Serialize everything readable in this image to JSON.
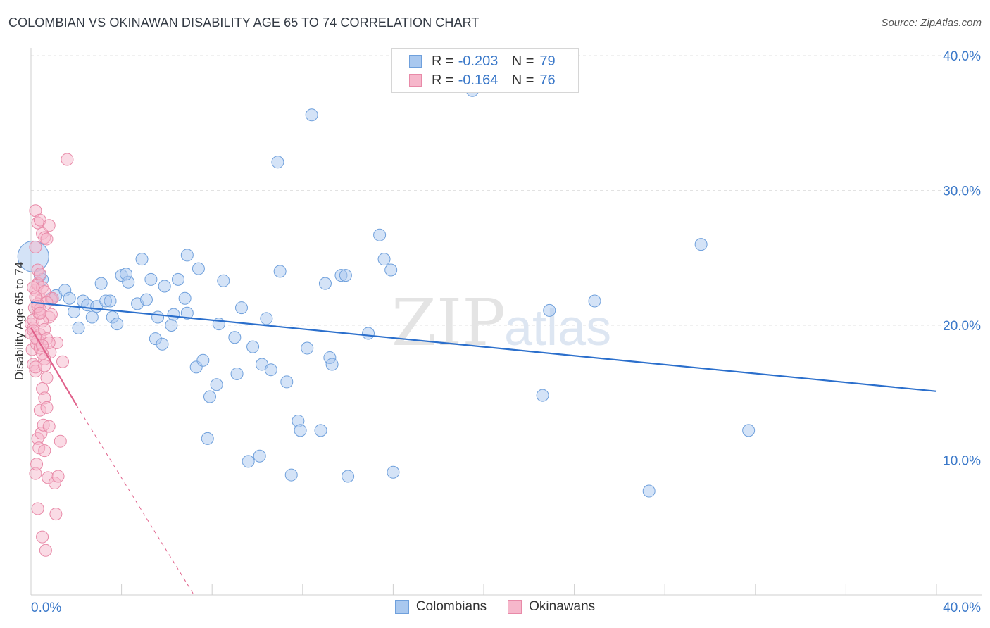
{
  "title": "COLOMBIAN VS OKINAWAN DISABILITY AGE 65 TO 74 CORRELATION CHART",
  "source": "Source: ZipAtlas.com",
  "watermark": {
    "zip": "ZIP",
    "atlas": "atlas"
  },
  "legend": {
    "rows": [
      {
        "r_label": "R =",
        "r_value": "-0.203",
        "n_label": "N =",
        "n_value": "79"
      },
      {
        "r_label": "R =",
        "r_value": "-0.164",
        "n_label": "N =",
        "n_value": "76"
      }
    ]
  },
  "bottom_legend": [
    "Colombians",
    "Okinawans"
  ],
  "colors": {
    "blue_fill": "#a9c8ef",
    "blue_stroke": "#6fa0dc",
    "blue_line": "#2b6fcc",
    "pink_fill": "#f6b7cb",
    "pink_stroke": "#e88aa8",
    "pink_line": "#e0608a",
    "grid": "#e2e2e2",
    "tick_text": "#3a78c9"
  },
  "chart_data": {
    "type": "scatter",
    "title": "COLOMBIAN VS OKINAWAN DISABILITY AGE 65 TO 74 CORRELATION CHART",
    "xlabel": "",
    "ylabel": "Disability Age 65 to 74",
    "xlim": [
      0,
      40
    ],
    "ylim": [
      0,
      40
    ],
    "x_tick_labels": [
      "0.0%",
      "40.0%"
    ],
    "y_tick_labels": [
      "10.0%",
      "20.0%",
      "30.0%",
      "40.0%"
    ],
    "y_ticks": [
      10,
      20,
      30,
      40
    ],
    "series": [
      {
        "name": "Colombians",
        "r": -0.203,
        "n": 79,
        "trend": {
          "x0": 0,
          "y0": 21.7,
          "x1": 40,
          "y1": 15.1
        },
        "points": [
          [
            0.1,
            25.1
          ],
          [
            0.4,
            23.7
          ],
          [
            0.5,
            23.4
          ],
          [
            0.9,
            22.0
          ],
          [
            1.1,
            22.2
          ],
          [
            1.5,
            22.6
          ],
          [
            1.7,
            22.0
          ],
          [
            1.9,
            21.0
          ],
          [
            2.1,
            19.8
          ],
          [
            2.3,
            21.8
          ],
          [
            2.5,
            21.5
          ],
          [
            2.7,
            20.6
          ],
          [
            2.9,
            21.4
          ],
          [
            3.1,
            23.1
          ],
          [
            3.3,
            21.8
          ],
          [
            3.5,
            21.8
          ],
          [
            3.6,
            20.6
          ],
          [
            3.8,
            20.1
          ],
          [
            4.0,
            23.7
          ],
          [
            4.3,
            23.2
          ],
          [
            4.2,
            23.8
          ],
          [
            4.7,
            21.6
          ],
          [
            4.9,
            24.9
          ],
          [
            5.1,
            21.9
          ],
          [
            5.3,
            23.4
          ],
          [
            5.5,
            19.0
          ],
          [
            5.6,
            20.6
          ],
          [
            5.8,
            18.6
          ],
          [
            5.9,
            22.9
          ],
          [
            6.2,
            20.0
          ],
          [
            6.3,
            20.8
          ],
          [
            6.5,
            23.4
          ],
          [
            6.8,
            22.0
          ],
          [
            6.9,
            25.2
          ],
          [
            7.3,
            16.9
          ],
          [
            7.4,
            24.2
          ],
          [
            7.6,
            17.4
          ],
          [
            7.8,
            11.6
          ],
          [
            7.9,
            14.7
          ],
          [
            8.2,
            15.6
          ],
          [
            8.3,
            20.1
          ],
          [
            8.5,
            23.3
          ],
          [
            9.0,
            19.1
          ],
          [
            9.1,
            16.4
          ],
          [
            9.3,
            21.3
          ],
          [
            9.6,
            9.9
          ],
          [
            9.8,
            18.4
          ],
          [
            10.1,
            10.3
          ],
          [
            10.2,
            17.1
          ],
          [
            10.4,
            20.5
          ],
          [
            10.6,
            16.7
          ],
          [
            10.9,
            32.1
          ],
          [
            11.0,
            24.0
          ],
          [
            11.3,
            15.8
          ],
          [
            11.5,
            8.9
          ],
          [
            11.8,
            12.9
          ],
          [
            11.9,
            12.2
          ],
          [
            12.2,
            18.3
          ],
          [
            12.4,
            35.6
          ],
          [
            12.8,
            12.2
          ],
          [
            13.0,
            23.1
          ],
          [
            13.2,
            17.6
          ],
          [
            13.3,
            17.1
          ],
          [
            13.7,
            23.7
          ],
          [
            14.0,
            8.8
          ],
          [
            14.9,
            19.4
          ],
          [
            15.4,
            26.7
          ],
          [
            15.6,
            24.9
          ],
          [
            15.9,
            24.1
          ],
          [
            16.0,
            9.1
          ],
          [
            19.5,
            37.4
          ],
          [
            22.6,
            14.8
          ],
          [
            22.9,
            21.1
          ],
          [
            24.9,
            21.8
          ],
          [
            27.3,
            7.7
          ],
          [
            29.6,
            26.0
          ],
          [
            31.7,
            12.2
          ],
          [
            13.9,
            23.7
          ],
          [
            6.9,
            20.9
          ]
        ]
      },
      {
        "name": "Okinawans",
        "r": -0.164,
        "n": 76,
        "trend": {
          "x0": 0,
          "y0": 19.8,
          "x1": 2.0,
          "y1": 14.1
        },
        "trend_extended": {
          "x0": 2.0,
          "y0": 14.1,
          "x1": 7.2,
          "y1": 0
        },
        "points": [
          [
            0.0,
            20.1
          ],
          [
            0.0,
            19.4
          ],
          [
            0.05,
            18.2
          ],
          [
            0.1,
            17.1
          ],
          [
            0.1,
            19.8
          ],
          [
            0.1,
            20.4
          ],
          [
            0.15,
            21.3
          ],
          [
            0.2,
            22.6
          ],
          [
            0.2,
            16.6
          ],
          [
            0.25,
            18.6
          ],
          [
            0.3,
            23.1
          ],
          [
            0.3,
            24.1
          ],
          [
            0.35,
            20.9
          ],
          [
            0.4,
            19.3
          ],
          [
            0.45,
            21.9
          ],
          [
            0.2,
            9.0
          ],
          [
            0.25,
            9.7
          ],
          [
            0.3,
            11.6
          ],
          [
            0.3,
            6.4
          ],
          [
            0.35,
            10.9
          ],
          [
            0.4,
            13.7
          ],
          [
            0.45,
            12.0
          ],
          [
            0.5,
            4.3
          ],
          [
            0.5,
            15.3
          ],
          [
            0.55,
            12.6
          ],
          [
            0.6,
            14.6
          ],
          [
            0.6,
            10.7
          ],
          [
            0.65,
            3.3
          ],
          [
            0.7,
            13.9
          ],
          [
            0.75,
            8.7
          ],
          [
            0.8,
            12.5
          ],
          [
            0.85,
            18.0
          ],
          [
            0.9,
            21.9
          ],
          [
            0.95,
            22.0
          ],
          [
            1.05,
            8.3
          ],
          [
            1.1,
            6.0
          ],
          [
            1.15,
            18.7
          ],
          [
            1.2,
            8.8
          ],
          [
            1.3,
            11.4
          ],
          [
            1.4,
            17.3
          ],
          [
            1.6,
            32.3
          ],
          [
            0.2,
            28.5
          ],
          [
            0.3,
            27.6
          ],
          [
            0.4,
            27.8
          ],
          [
            0.5,
            26.8
          ],
          [
            0.6,
            26.5
          ],
          [
            0.7,
            26.4
          ],
          [
            0.8,
            27.4
          ],
          [
            0.2,
            25.8
          ],
          [
            0.3,
            23.0
          ],
          [
            0.4,
            23.8
          ],
          [
            0.5,
            22.8
          ],
          [
            0.6,
            22.5
          ],
          [
            0.7,
            21.7
          ],
          [
            0.8,
            20.6
          ],
          [
            0.9,
            20.8
          ],
          [
            0.1,
            19.6
          ],
          [
            0.2,
            19.1
          ],
          [
            0.3,
            18.9
          ],
          [
            0.4,
            18.3
          ],
          [
            0.5,
            17.9
          ],
          [
            0.6,
            17.5
          ],
          [
            0.2,
            16.9
          ],
          [
            0.3,
            21.6
          ],
          [
            0.4,
            21.2
          ],
          [
            0.5,
            20.3
          ],
          [
            0.6,
            19.7
          ],
          [
            0.7,
            19.0
          ],
          [
            0.8,
            18.7
          ],
          [
            0.1,
            22.8
          ],
          [
            0.2,
            22.1
          ],
          [
            0.3,
            21.4
          ],
          [
            0.4,
            20.9
          ],
          [
            0.5,
            18.5
          ],
          [
            0.6,
            17.0
          ],
          [
            0.7,
            16.1
          ]
        ]
      }
    ]
  }
}
